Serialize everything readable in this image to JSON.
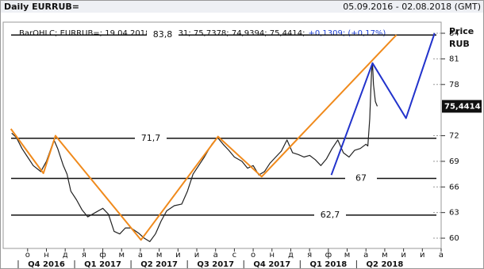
{
  "chart_data": {
    "type": "line",
    "title": "Daily EURRUB=",
    "date_range": "05.09.2016 - 02.08.2018 (GMT)",
    "info": "BarOHLC; EURRUB=; 19.04.2018; 75,2331; 75,7378; 74,9394; 75,4414;",
    "info_change": "+0,1309; (+0,17%)",
    "y_axis_label": "Price",
    "y_axis_unit": "RUB",
    "xlim": [
      -0.3,
      23
    ],
    "ylim": [
      58.8,
      85.3
    ],
    "yticks": [
      60,
      63,
      66,
      69,
      72,
      78,
      81,
      84
    ],
    "xticks": [
      {
        "value": 1,
        "label": "о"
      },
      {
        "value": 2,
        "label": "н"
      },
      {
        "value": 3,
        "label": "д"
      },
      {
        "value": 4,
        "label": "я"
      },
      {
        "value": 5,
        "label": "ф"
      },
      {
        "value": 6,
        "label": "м"
      },
      {
        "value": 7,
        "label": "а"
      },
      {
        "value": 8,
        "label": "м"
      },
      {
        "value": 9,
        "label": "и"
      },
      {
        "value": 10,
        "label": "и"
      },
      {
        "value": 11,
        "label": "а"
      },
      {
        "value": 12,
        "label": "с"
      },
      {
        "value": 13,
        "label": "о"
      },
      {
        "value": 14,
        "label": "н"
      },
      {
        "value": 15,
        "label": "д"
      },
      {
        "value": 16,
        "label": "я"
      },
      {
        "value": 17,
        "label": "ф"
      },
      {
        "value": 18,
        "label": "м"
      },
      {
        "value": 19,
        "label": "а"
      },
      {
        "value": 20,
        "label": "м"
      },
      {
        "value": 21,
        "label": "и"
      },
      {
        "value": 22,
        "label": "и"
      },
      {
        "value": 23,
        "label": "а"
      }
    ],
    "quarters": [
      "Q4 2016",
      "Q1 2017",
      "Q2 2017",
      "Q3 2017",
      "Q4 2017",
      "Q1 2018",
      "Q2 2018"
    ],
    "levels": [
      {
        "value": 83.8,
        "label": "83,8"
      },
      {
        "value": 71.7,
        "label": "71,7"
      },
      {
        "value": 67,
        "label": "67"
      },
      {
        "value": 62.7,
        "label": "62,7"
      }
    ],
    "last_price": {
      "value": 75.4414,
      "label": "75,4414"
    },
    "series": [
      {
        "color": "#222222",
        "x": [
          0.15,
          0.4,
          0.7,
          1.0,
          1.3,
          1.7,
          2.0,
          2.4,
          2.6,
          2.9,
          3.1,
          3.3,
          3.6,
          3.9,
          4.2,
          4.6,
          5.0,
          5.3,
          5.6,
          5.9,
          6.2,
          6.5,
          6.9,
          7.2,
          7.5,
          7.8,
          8.1,
          8.4,
          8.8,
          9.2,
          9.5,
          9.8,
          10.1,
          10.4,
          10.8,
          11.1,
          11.4,
          11.7,
          12.0,
          12.4,
          12.7,
          13.0,
          13.3,
          13.6,
          13.9,
          14.2,
          14.5,
          14.8,
          15.1,
          15.4,
          15.7,
          16.0,
          16.3,
          16.6,
          16.9,
          17.2,
          17.5,
          17.8,
          18.1,
          18.4,
          18.7,
          19.0,
          19.1,
          19.2,
          19.25,
          19.3,
          19.35,
          19.4,
          19.5,
          19.6
        ],
        "values": [
          72.3,
          71.8,
          70.5,
          69.5,
          68.5,
          67.8,
          69,
          71.5,
          70.5,
          68.5,
          67.5,
          65.5,
          64.5,
          63.3,
          62.5,
          63,
          63.5,
          62.8,
          60.8,
          60.5,
          61.2,
          61.2,
          60.6,
          60.0,
          59.6,
          60.5,
          62,
          63.2,
          63.8,
          64.0,
          65.5,
          67.5,
          68.5,
          69.5,
          71,
          71.8,
          71.0,
          70.3,
          69.5,
          69.0,
          68.2,
          68.5,
          67.4,
          67.8,
          68.8,
          69.5,
          70.2,
          71.5,
          70,
          69.8,
          69.5,
          69.7,
          69.2,
          68.5,
          69.3,
          70.5,
          71.5,
          70,
          69.5,
          70.3,
          70.5,
          71.0,
          70.8,
          74,
          77,
          79.5,
          80.5,
          78,
          76,
          75.4414
        ]
      },
      {
        "color": "#f08a1c",
        "x": [
          0.11,
          1.84,
          2.48,
          7.03,
          11.13,
          13.45,
          20.62
        ],
        "values": [
          72.8,
          67.6,
          72.0,
          59.8,
          71.9,
          67.2,
          83.8
        ]
      },
      {
        "color": "#2233cc",
        "x": [
          17.16,
          19.35,
          21.13,
          22.65
        ],
        "values": [
          67.4,
          80.5,
          74.05,
          84
        ]
      }
    ]
  }
}
